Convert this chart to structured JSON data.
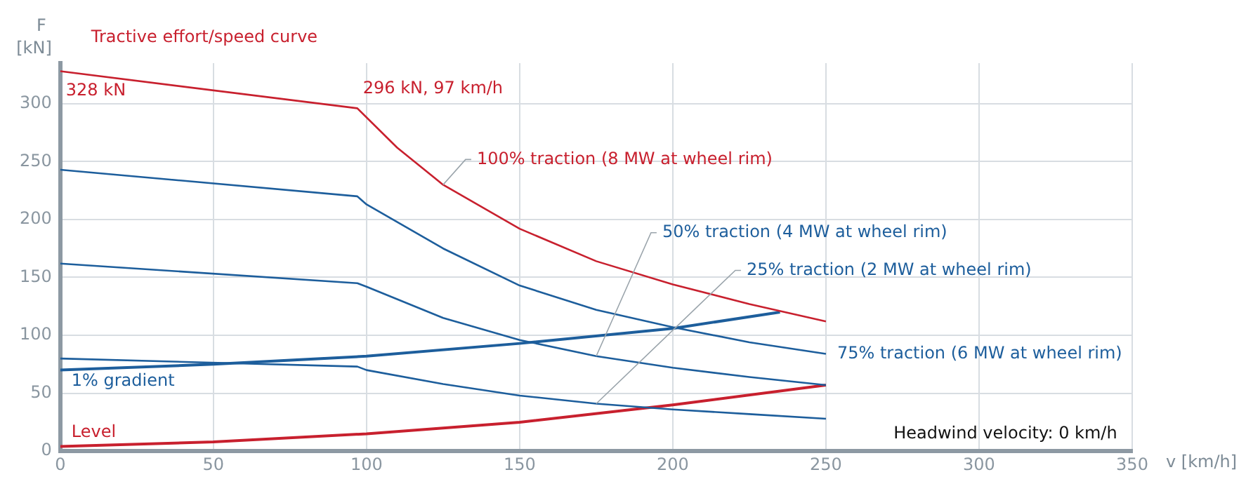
{
  "chart_data": {
    "type": "line",
    "title": "Tractive effort/speed curve",
    "xlabel": "v [km/h]",
    "ylabel": "F [kN]",
    "xlim": [
      0,
      350
    ],
    "xticks": [
      0,
      50,
      100,
      150,
      200,
      250,
      300,
      350
    ],
    "ylim": [
      0,
      335
    ],
    "yticks": [
      0,
      50,
      100,
      150,
      200,
      250,
      300
    ],
    "grid": true,
    "legend": false,
    "marker": "none",
    "line_style": "solid",
    "series": [
      {
        "name": "100% traction (8 MW at wheel rim)",
        "color": "#c8202e",
        "x": [
          0,
          97,
          110,
          125,
          150,
          175,
          200,
          225,
          250
        ],
        "values": [
          328,
          296,
          262,
          230,
          192,
          164,
          144,
          127,
          112
        ]
      },
      {
        "name": "75% traction (6 MW at wheel rim)",
        "color": "#1d5e9c",
        "x": [
          0,
          97,
          100,
          125,
          150,
          175,
          200,
          225,
          250
        ],
        "values": [
          243,
          220,
          213,
          175,
          143,
          122,
          107,
          94,
          84
        ]
      },
      {
        "name": "50% traction (4 MW at wheel rim)",
        "color": "#1d5e9c",
        "x": [
          0,
          97,
          100,
          125,
          150,
          175,
          200,
          225,
          250
        ],
        "values": [
          162,
          145,
          142,
          115,
          96,
          82,
          72,
          64,
          57
        ]
      },
      {
        "name": "25% traction (2 MW at wheel rim)",
        "color": "#1d5e9c",
        "x": [
          0,
          97,
          100,
          125,
          150,
          175,
          200,
          225,
          250
        ],
        "values": [
          80,
          73,
          70,
          58,
          48,
          41,
          36,
          32,
          28
        ]
      },
      {
        "name": "1% gradient",
        "color": "#1d5e9c",
        "x": [
          0,
          50,
          100,
          150,
          200,
          235
        ],
        "values": [
          70,
          75,
          82,
          93,
          106,
          120
        ]
      },
      {
        "name": "Level",
        "color": "#c8202e",
        "x": [
          0,
          50,
          100,
          150,
          200,
          250
        ],
        "values": [
          4,
          8,
          15,
          25,
          40,
          57
        ]
      }
    ],
    "annotations": [
      {
        "text": "328 kN",
        "x": 0,
        "y": 328
      },
      {
        "text": "296 kN, 97 km/h",
        "x": 97,
        "y": 296
      },
      "Headwind velocity: 0 km/h"
    ]
  }
}
